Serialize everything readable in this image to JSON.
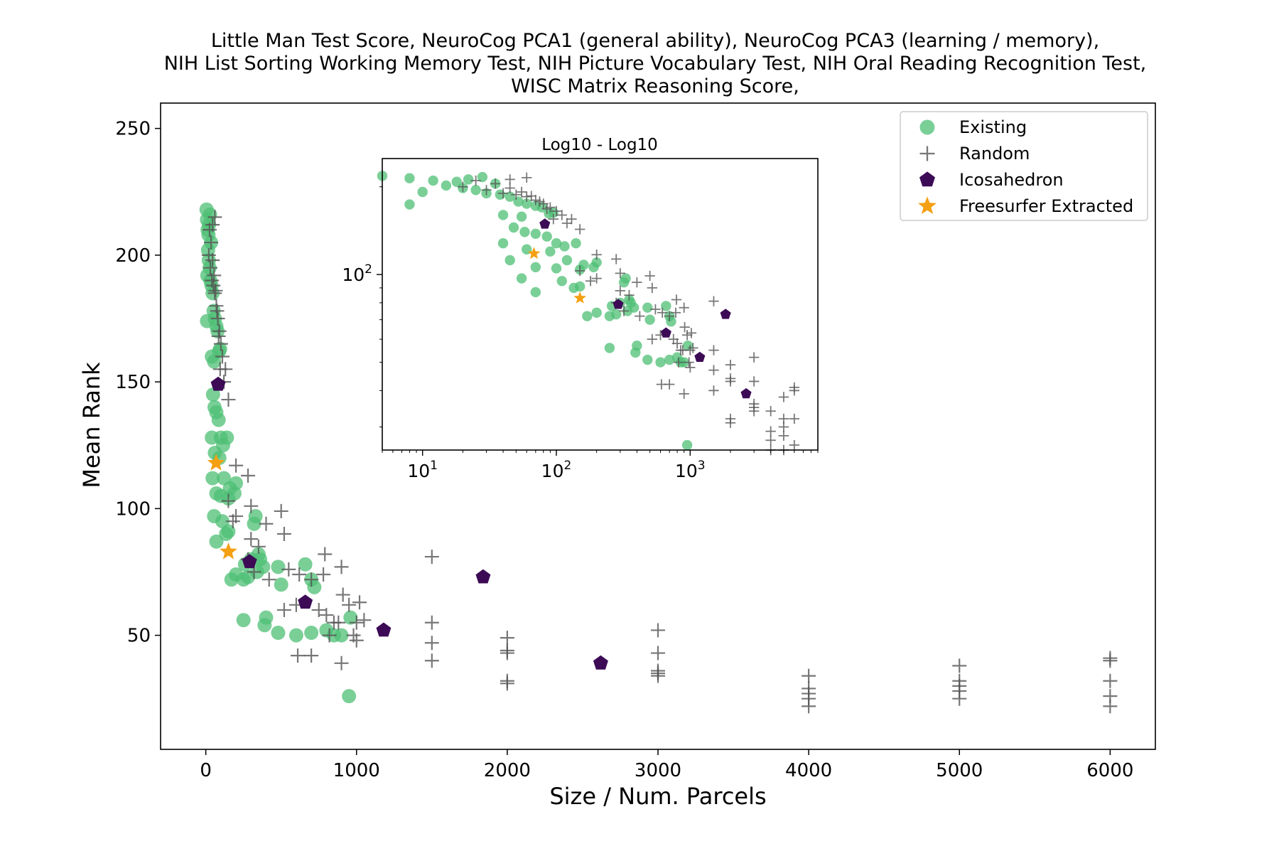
{
  "chart_data": {
    "type": "scatter",
    "title_lines": [
      "Little Man Test Score, NeuroCog PCA1 (general ability), NeuroCog PCA3 (learning / memory),",
      "NIH List Sorting Working Memory Test, NIH Picture Vocabulary Test, NIH Oral Reading Recognition Test,",
      "WISC Matrix Reasoning Score,"
    ],
    "xlabel": "Size / Num. Parcels",
    "ylabel": "Mean Rank",
    "xlim": [
      -300,
      6300
    ],
    "ylim": [
      5,
      260
    ],
    "xticks": [
      {
        "value": 0,
        "label": "0"
      },
      {
        "value": 1000,
        "label": "1000"
      },
      {
        "value": 2000,
        "label": "2000"
      },
      {
        "value": 3000,
        "label": "3000"
      },
      {
        "value": 4000,
        "label": "4000"
      },
      {
        "value": 5000,
        "label": "5000"
      },
      {
        "value": 6000,
        "label": "6000"
      }
    ],
    "yticks": [
      {
        "value": 50,
        "label": "50"
      },
      {
        "value": 100,
        "label": "100"
      },
      {
        "value": 150,
        "label": "150"
      },
      {
        "value": 200,
        "label": "200"
      },
      {
        "value": 250,
        "label": "250"
      }
    ],
    "legend_position": "top-right",
    "series": [
      {
        "name": "Existing",
        "marker": "circle",
        "color": "#4dbf74",
        "points": [
          [
            5,
            218
          ],
          [
            8,
            214
          ],
          [
            12,
            210
          ],
          [
            18,
            208
          ],
          [
            22,
            212
          ],
          [
            28,
            216
          ],
          [
            35,
            205
          ],
          [
            15,
            202
          ],
          [
            20,
            198
          ],
          [
            25,
            195
          ],
          [
            10,
            192
          ],
          [
            30,
            190
          ],
          [
            38,
            188
          ],
          [
            45,
            185
          ],
          [
            52,
            178
          ],
          [
            60,
            175
          ],
          [
            8,
            174
          ],
          [
            70,
            172
          ],
          [
            78,
            170
          ],
          [
            88,
            162
          ],
          [
            40,
            160
          ],
          [
            55,
            158
          ],
          [
            95,
            163
          ],
          [
            48,
            145
          ],
          [
            58,
            140
          ],
          [
            70,
            138
          ],
          [
            85,
            135
          ],
          [
            100,
            128
          ],
          [
            115,
            125
          ],
          [
            40,
            128
          ],
          [
            60,
            122
          ],
          [
            140,
            128
          ],
          [
            90,
            120
          ],
          [
            120,
            112
          ],
          [
            160,
            108
          ],
          [
            200,
            110
          ],
          [
            70,
            106
          ],
          [
            100,
            105
          ],
          [
            150,
            104
          ],
          [
            45,
            112
          ],
          [
            190,
            106
          ],
          [
            55,
            97
          ],
          [
            135,
            90
          ],
          [
            70,
            87
          ],
          [
            110,
            95
          ],
          [
            170,
            72
          ],
          [
            200,
            74
          ],
          [
            260,
            78
          ],
          [
            300,
            80
          ],
          [
            320,
            94
          ],
          [
            330,
            97
          ],
          [
            340,
            75
          ],
          [
            250,
            72
          ],
          [
            360,
            80
          ],
          [
            380,
            77
          ],
          [
            480,
            77
          ],
          [
            500,
            70
          ],
          [
            660,
            78
          ],
          [
            700,
            72
          ],
          [
            720,
            69
          ],
          [
            800,
            52
          ],
          [
            850,
            50
          ],
          [
            900,
            50
          ],
          [
            960,
            57
          ],
          [
            480,
            51
          ],
          [
            600,
            50
          ],
          [
            400,
            57
          ],
          [
            250,
            56
          ],
          [
            390,
            54
          ],
          [
            950,
            26
          ],
          [
            700,
            51
          ],
          [
            350,
            82
          ],
          [
            280,
            73
          ],
          [
            150,
            91
          ]
        ]
      },
      {
        "name": "Random",
        "marker": "plus",
        "color": "#555555",
        "points": [
          [
            20,
            200
          ],
          [
            30,
            195
          ],
          [
            40,
            190
          ],
          [
            50,
            188
          ],
          [
            60,
            185
          ],
          [
            70,
            180
          ],
          [
            80,
            175
          ],
          [
            90,
            170
          ],
          [
            100,
            165
          ],
          [
            110,
            160
          ],
          [
            25,
            210
          ],
          [
            35,
            205
          ],
          [
            45,
            198
          ],
          [
            55,
            192
          ],
          [
            65,
            186
          ],
          [
            75,
            178
          ],
          [
            85,
            168
          ],
          [
            95,
            155
          ],
          [
            120,
            150
          ],
          [
            150,
            143
          ],
          [
            130,
            155
          ],
          [
            60,
            215
          ],
          [
            45,
            212
          ],
          [
            200,
            117
          ],
          [
            280,
            113
          ],
          [
            150,
            103
          ],
          [
            300,
            101
          ],
          [
            400,
            94
          ],
          [
            500,
            99
          ],
          [
            520,
            90
          ],
          [
            550,
            76
          ],
          [
            200,
            97
          ],
          [
            300,
            88
          ],
          [
            350,
            85
          ],
          [
            180,
            95
          ],
          [
            280,
            80
          ],
          [
            320,
            75
          ],
          [
            420,
            72
          ],
          [
            520,
            60
          ],
          [
            600,
            62
          ],
          [
            620,
            74
          ],
          [
            700,
            72
          ],
          [
            750,
            60
          ],
          [
            790,
            82
          ],
          [
            800,
            58
          ],
          [
            850,
            55
          ],
          [
            880,
            55
          ],
          [
            900,
            77
          ],
          [
            910,
            66
          ],
          [
            950,
            62
          ],
          [
            980,
            50
          ],
          [
            1000,
            55
          ],
          [
            1020,
            63
          ],
          [
            1050,
            56
          ],
          [
            610,
            42
          ],
          [
            700,
            42
          ],
          [
            900,
            39
          ],
          [
            1000,
            48
          ],
          [
            1500,
            81
          ],
          [
            1500,
            55
          ],
          [
            1500,
            47
          ],
          [
            1500,
            40
          ],
          [
            2000,
            49
          ],
          [
            2000,
            44
          ],
          [
            2000,
            43
          ],
          [
            2000,
            32
          ],
          [
            2000,
            31
          ],
          [
            3000,
            52
          ],
          [
            3000,
            43
          ],
          [
            3000,
            36
          ],
          [
            3000,
            34
          ],
          [
            3000,
            35
          ],
          [
            4000,
            34
          ],
          [
            4000,
            29
          ],
          [
            4000,
            25
          ],
          [
            4000,
            22
          ],
          [
            4000,
            27
          ],
          [
            5000,
            38
          ],
          [
            5000,
            32
          ],
          [
            5000,
            30
          ],
          [
            5000,
            28
          ],
          [
            5000,
            25
          ],
          [
            6000,
            41
          ],
          [
            6000,
            40
          ],
          [
            6000,
            32
          ],
          [
            6000,
            26
          ],
          [
            6000,
            22
          ],
          [
            780,
            74
          ],
          [
            820,
            50
          ]
        ]
      },
      {
        "name": "Icosahedron",
        "marker": "pentagon",
        "color": "#3d0b56",
        "points": [
          [
            82,
            149
          ],
          [
            290,
            79
          ],
          [
            660,
            63
          ],
          [
            1180,
            52
          ],
          [
            1840,
            73
          ],
          [
            2620,
            39
          ]
        ]
      },
      {
        "name": "Freesurfer Extracted",
        "marker": "star",
        "color": "#f4a012",
        "points": [
          [
            68,
            118
          ],
          [
            150,
            83
          ]
        ]
      }
    ],
    "inset": {
      "title": "Log10 - Log10",
      "xscale": "log",
      "yscale": "log",
      "xlim": [
        5,
        9000
      ],
      "ylim": [
        25,
        250
      ],
      "xticks": [
        {
          "value": 10,
          "base": "10",
          "exp": "1"
        },
        {
          "value": 100,
          "base": "10",
          "exp": "2"
        },
        {
          "value": 1000,
          "base": "10",
          "exp": "3"
        }
      ],
      "yticks": [
        {
          "value": 100,
          "base": "10",
          "exp": "2"
        }
      ]
    }
  }
}
